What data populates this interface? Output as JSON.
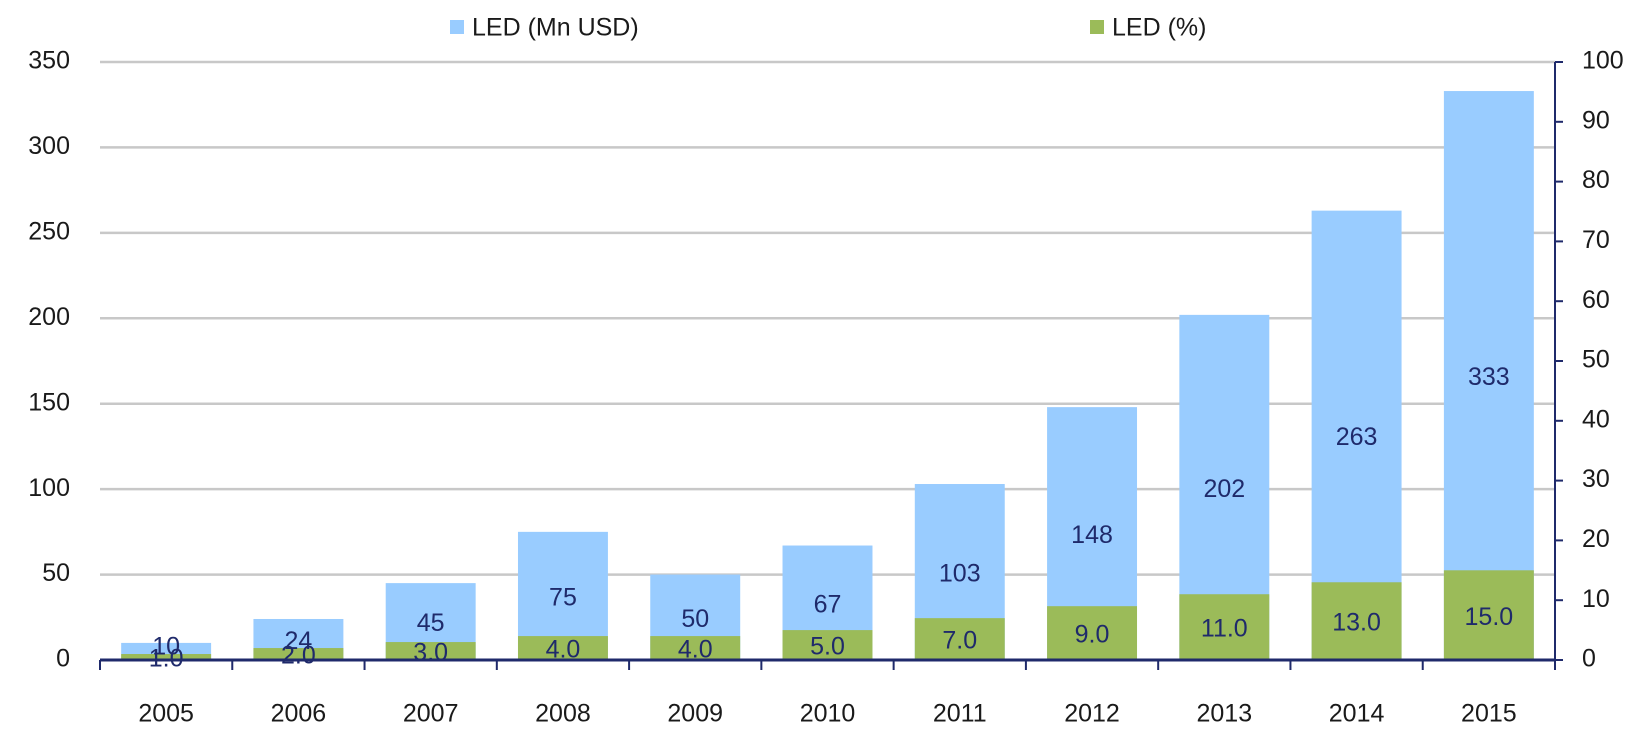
{
  "chart_data": {
    "type": "bar",
    "categories": [
      "2005",
      "2006",
      "2007",
      "2008",
      "2009",
      "2010",
      "2011",
      "2012",
      "2013",
      "2014",
      "2015"
    ],
    "series": [
      {
        "name": "LED (Mn USD)",
        "color": "#99ccff",
        "values": [
          10,
          24,
          45,
          75,
          50,
          67,
          103,
          148,
          202,
          263,
          333
        ]
      },
      {
        "name": "LED (%)",
        "color": "#9bbb59",
        "axis": "y2",
        "values": [
          1,
          2,
          3,
          4,
          4,
          5,
          7,
          9,
          11,
          13,
          15
        ],
        "value_labels": [
          "1.0",
          "2.0",
          "3.0",
          "4.0",
          "4.0",
          "5.0",
          "7.0",
          "9.0",
          "11.0",
          "13.0",
          "15.0"
        ]
      }
    ],
    "ylim": [
      0,
      350
    ],
    "yticks": [
      0,
      50,
      100,
      150,
      200,
      250,
      300,
      350
    ],
    "y2lim": [
      0,
      100
    ],
    "y2ticks": [
      0,
      10,
      20,
      30,
      40,
      50,
      60,
      70,
      80,
      90,
      100
    ],
    "grid": true,
    "legend": "top"
  }
}
